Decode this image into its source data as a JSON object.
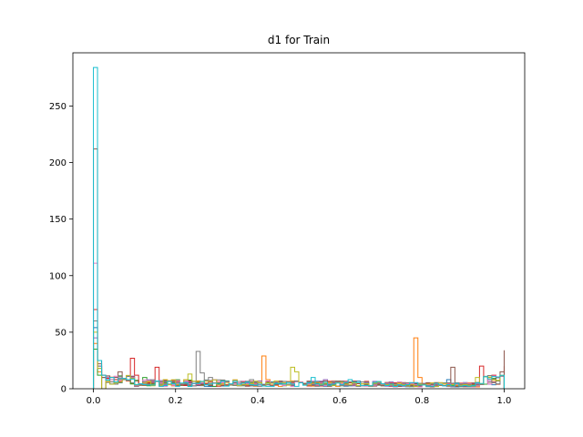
{
  "chart_data": {
    "type": "histogram",
    "title": "d1 for Train",
    "xlabel": "",
    "ylabel": "",
    "xlim": [
      -0.05,
      1.05
    ],
    "ylim": [
      0,
      297
    ],
    "x_ticks": [
      0.0,
      0.2,
      0.4,
      0.6,
      0.8,
      1.0
    ],
    "x_tick_labels": [
      "0.0",
      "0.2",
      "0.4",
      "0.6",
      "0.8",
      "1.0"
    ],
    "y_ticks": [
      0,
      50,
      100,
      150,
      200,
      250
    ],
    "y_tick_labels": [
      "0",
      "50",
      "100",
      "150",
      "200",
      "250"
    ],
    "histtype": "step",
    "bin_width": 0.01,
    "grid": false,
    "legend": "none",
    "series": [
      {
        "color": "#1f77b4",
        "points": [
          [
            0.0,
            54
          ],
          [
            0.01,
            20
          ],
          [
            0.02,
            10
          ],
          [
            0.05,
            5
          ],
          [
            0.2,
            3
          ],
          [
            0.45,
            4
          ],
          [
            0.86,
            8
          ],
          [
            1.0,
            6
          ]
        ]
      },
      {
        "color": "#ff7f0e",
        "points": [
          [
            0.0,
            40
          ],
          [
            0.01,
            15
          ],
          [
            0.03,
            6
          ],
          [
            0.41,
            29
          ],
          [
            0.42,
            8
          ],
          [
            0.775,
            45
          ],
          [
            0.785,
            22
          ],
          [
            0.79,
            10
          ],
          [
            1.0,
            12
          ]
        ]
      },
      {
        "color": "#2ca02c",
        "points": [
          [
            0.0,
            35
          ],
          [
            0.01,
            12
          ],
          [
            0.05,
            8
          ],
          [
            0.12,
            10
          ],
          [
            0.3,
            4
          ],
          [
            0.63,
            6
          ],
          [
            0.95,
            4
          ],
          [
            1.0,
            10
          ]
        ]
      },
      {
        "color": "#d62728",
        "points": [
          [
            0.0,
            70
          ],
          [
            0.01,
            25
          ],
          [
            0.02,
            12
          ],
          [
            0.09,
            27
          ],
          [
            0.1,
            12
          ],
          [
            0.15,
            19
          ],
          [
            0.94,
            20
          ],
          [
            0.995,
            33
          ],
          [
            1.0,
            20
          ]
        ]
      },
      {
        "color": "#9467bd",
        "points": [
          [
            0.0,
            45
          ],
          [
            0.01,
            18
          ],
          [
            0.05,
            10
          ],
          [
            0.25,
            6
          ],
          [
            0.36,
            5
          ],
          [
            0.56,
            8
          ],
          [
            0.72,
            6
          ],
          [
            1.0,
            8
          ]
        ]
      },
      {
        "color": "#8c564b",
        "points": [
          [
            0.0,
            212
          ],
          [
            0.005,
            60
          ],
          [
            0.01,
            22
          ],
          [
            0.02,
            10
          ],
          [
            0.06,
            15
          ],
          [
            0.42,
            6
          ],
          [
            0.87,
            19
          ],
          [
            0.99,
            15
          ],
          [
            1.0,
            34
          ]
        ]
      },
      {
        "color": "#e377c2",
        "points": [
          [
            0.0,
            111
          ],
          [
            0.005,
            45
          ],
          [
            0.01,
            20
          ],
          [
            0.03,
            8
          ],
          [
            0.5,
            6
          ],
          [
            0.74,
            6
          ],
          [
            1.0,
            6
          ]
        ]
      },
      {
        "color": "#7f7f7f",
        "points": [
          [
            0.0,
            60
          ],
          [
            0.01,
            20
          ],
          [
            0.245,
            33
          ],
          [
            0.255,
            14
          ],
          [
            0.28,
            10
          ],
          [
            0.38,
            8
          ],
          [
            0.995,
            31
          ],
          [
            1.0,
            10
          ]
        ]
      },
      {
        "color": "#bcbd22",
        "points": [
          [
            0.0,
            50
          ],
          [
            0.01,
            18
          ],
          [
            0.17,
            8
          ],
          [
            0.23,
            13
          ],
          [
            0.48,
            19
          ],
          [
            0.49,
            15
          ],
          [
            0.93,
            10
          ],
          [
            1.0,
            8
          ]
        ]
      },
      {
        "color": "#17becf",
        "points": [
          [
            0.0,
            284
          ],
          [
            0.005,
            70
          ],
          [
            0.01,
            25
          ],
          [
            0.02,
            12
          ],
          [
            0.05,
            6
          ],
          [
            0.28,
            4
          ],
          [
            0.53,
            10
          ],
          [
            0.62,
            8
          ],
          [
            1.0,
            5
          ]
        ]
      }
    ]
  }
}
